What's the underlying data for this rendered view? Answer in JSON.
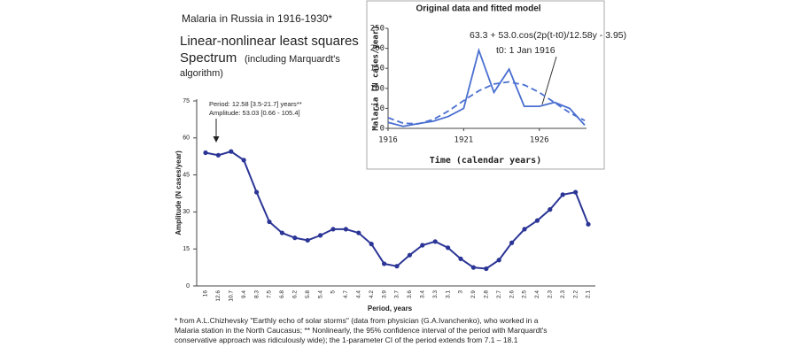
{
  "chart_data": [
    {
      "type": "line",
      "title": "Malaria in Russia in 1916-1930*",
      "subtitle": [
        "Linear-nonlinear least squares",
        "Spectrum",
        "(including Marquardt's",
        "algorithm)"
      ],
      "x_label": "Period, years",
      "y_label": "Amplitude (N cases/year)",
      "categories": [
        "16",
        "12.6",
        "10.7",
        "9.4",
        "8.3",
        "7.5",
        "6.8",
        "6.2",
        "5.8",
        "5.4",
        "5",
        "4.7",
        "4.4",
        "4.2",
        "3.9",
        "3.7",
        "3.6",
        "3.4",
        "3.3",
        "3.1",
        "3",
        "2.9",
        "2.8",
        "2.7",
        "2.6",
        "2.5",
        "2.4",
        "2.3",
        "2.3",
        "2.2",
        "2.1"
      ],
      "values": [
        54,
        53,
        54.5,
        51,
        38,
        26,
        21.5,
        19.5,
        18.5,
        20.5,
        23,
        23,
        21.5,
        17,
        9,
        8,
        12.5,
        16.5,
        18,
        15.5,
        11,
        7.5,
        7,
        10.5,
        17.5,
        23,
        26.5,
        31,
        37,
        38,
        25
      ],
      "color": "#2b3596",
      "ylim": [
        0,
        75
      ],
      "yticks": [
        0,
        15,
        30,
        45,
        60,
        75
      ],
      "annotations": [
        "Period: 12.58 [3.5-21.7] years**",
        "Amplitude: 53.03 [0.66 - 105.4]"
      ]
    },
    {
      "type": "line",
      "title": "Original data and fitted model",
      "x_label": "Time (calendar years)",
      "y_label": "Malaria (N cases/year)",
      "x": [
        1916,
        1917,
        1918,
        1919,
        1920,
        1921,
        1922,
        1923,
        1924,
        1925,
        1926,
        1927,
        1928,
        1929
      ],
      "series": [
        {
          "color": "#4a6fd0",
          "dashed": false,
          "values": [
            15,
            5,
            12,
            18,
            30,
            50,
            195,
            90,
            148,
            55,
            55,
            65,
            50,
            8
          ]
        },
        {
          "color": "#4a6fd0",
          "dashed": true,
          "values": [
            26.7,
            12.8,
            11.3,
            22.4,
            43.6,
            69.5,
            93.9,
            110.9,
            116.2,
            108.6,
            89.9,
            64.7,
            39.1,
            19.5
          ]
        }
      ],
      "xlim": [
        1916,
        1929
      ],
      "xticks": [
        1916,
        1921,
        1926
      ],
      "ylim": [
        0,
        250
      ],
      "yticks": [
        0,
        50,
        100,
        150,
        200,
        250
      ],
      "annotations": [
        "63.3 + 53.0.cos(2p(t-t0)/12.58y - 3.95)",
        "t0: 1 Jan 1916"
      ]
    }
  ],
  "footnote": "* from A.L.Chizhevsky \"Earthly echo of solar storms\" (data from physician (G.A.Ivanchenko), who worked in a Malaria station in the North Caucasus; ** Nonlinearly, the 95% confidence interval of the period with Marquardt's conservative approach was ridiculously wide); the 1-parameter CI of the period extends from 7.1 – 18.1"
}
